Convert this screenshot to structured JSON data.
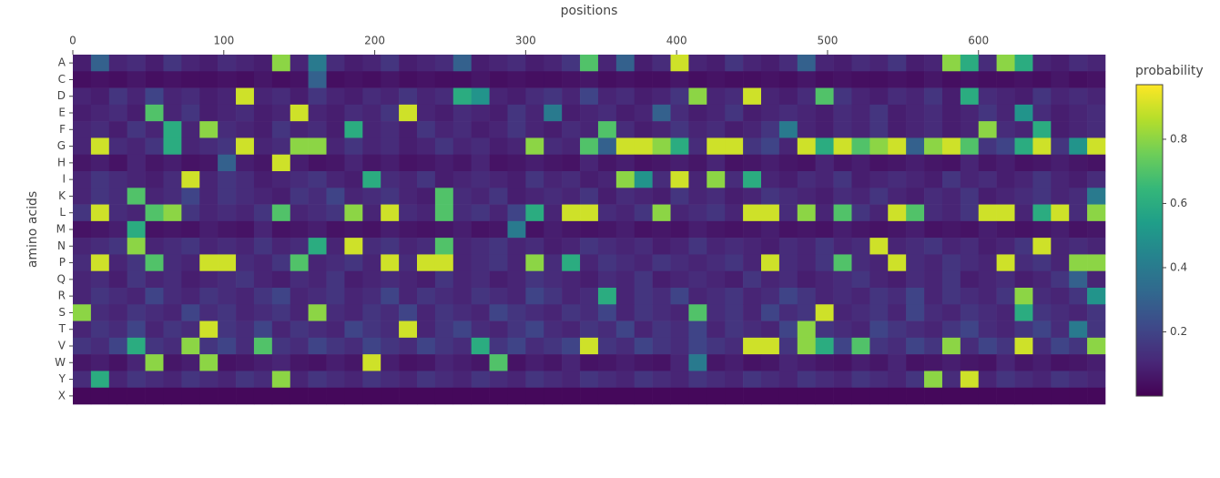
{
  "chart_data": {
    "type": "heatmap",
    "x_label": "positions",
    "y_label": "amino acids",
    "colorbar_title": "probability",
    "colorscale": "Viridis",
    "x_axis_side": "top",
    "x": [
      6,
      18,
      30,
      42,
      54,
      66,
      78,
      90,
      102,
      114,
      126,
      138,
      150,
      162,
      174,
      186,
      198,
      210,
      222,
      234,
      246,
      258,
      270,
      282,
      294,
      306,
      318,
      330,
      342,
      354,
      366,
      378,
      390,
      402,
      414,
      426,
      438,
      450,
      462,
      474,
      486,
      498,
      510,
      522,
      534,
      546,
      558,
      570,
      582,
      594,
      606,
      618,
      630,
      642,
      654,
      666,
      678
    ],
    "y": [
      "A",
      "C",
      "D",
      "E",
      "F",
      "G",
      "H",
      "I",
      "K",
      "L",
      "M",
      "N",
      "P",
      "Q",
      "R",
      "S",
      "T",
      "V",
      "W",
      "Y",
      "X"
    ],
    "xlim": [
      0,
      684
    ],
    "xticks": [
      0,
      100,
      200,
      300,
      400,
      500,
      600
    ],
    "zlim": [
      0,
      0.97
    ],
    "zticks": [
      0.2,
      0.4,
      0.6,
      0.8
    ],
    "z": [
      [
        0.08,
        0.3,
        0.1,
        0.12,
        0.08,
        0.15,
        0.1,
        0.08,
        0.12,
        0.1,
        0.08,
        0.8,
        0.1,
        0.4,
        0.12,
        0.08,
        0.1,
        0.15,
        0.08,
        0.1,
        0.12,
        0.3,
        0.08,
        0.1,
        0.12,
        0.08,
        0.1,
        0.15,
        0.7,
        0.1,
        0.3,
        0.08,
        0.12,
        0.9,
        0.1,
        0.08,
        0.15,
        0.1,
        0.08,
        0.12,
        0.3,
        0.1,
        0.08,
        0.12,
        0.1,
        0.15,
        0.08,
        0.1,
        0.8,
        0.6,
        0.12,
        0.8,
        0.6,
        0.1,
        0.08,
        0.12,
        0.1
      ],
      [
        0.04,
        0.05,
        0.04,
        0.06,
        0.04,
        0.05,
        0.04,
        0.04,
        0.05,
        0.04,
        0.06,
        0.04,
        0.05,
        0.3,
        0.04,
        0.05,
        0.04,
        0.06,
        0.04,
        0.05,
        0.04,
        0.04,
        0.06,
        0.04,
        0.05,
        0.04,
        0.04,
        0.05,
        0.06,
        0.04,
        0.05,
        0.04,
        0.04,
        0.06,
        0.04,
        0.05,
        0.04,
        0.04,
        0.05,
        0.04,
        0.06,
        0.04,
        0.05,
        0.04,
        0.04,
        0.05,
        0.04,
        0.06,
        0.04,
        0.05,
        0.04,
        0.04,
        0.05,
        0.04,
        0.06,
        0.04,
        0.05
      ],
      [
        0.1,
        0.08,
        0.15,
        0.1,
        0.2,
        0.1,
        0.12,
        0.08,
        0.1,
        0.9,
        0.1,
        0.12,
        0.08,
        0.15,
        0.1,
        0.08,
        0.12,
        0.1,
        0.15,
        0.1,
        0.12,
        0.6,
        0.5,
        0.1,
        0.08,
        0.12,
        0.15,
        0.1,
        0.2,
        0.1,
        0.12,
        0.08,
        0.1,
        0.15,
        0.8,
        0.1,
        0.12,
        0.9,
        0.1,
        0.08,
        0.12,
        0.7,
        0.15,
        0.1,
        0.08,
        0.12,
        0.1,
        0.15,
        0.08,
        0.6,
        0.12,
        0.1,
        0.08,
        0.15,
        0.1,
        0.12,
        0.1
      ],
      [
        0.08,
        0.1,
        0.12,
        0.08,
        0.7,
        0.1,
        0.15,
        0.08,
        0.1,
        0.12,
        0.08,
        0.1,
        0.9,
        0.1,
        0.08,
        0.12,
        0.1,
        0.15,
        0.9,
        0.1,
        0.08,
        0.12,
        0.1,
        0.08,
        0.15,
        0.1,
        0.4,
        0.08,
        0.1,
        0.12,
        0.08,
        0.1,
        0.3,
        0.12,
        0.08,
        0.1,
        0.15,
        0.08,
        0.1,
        0.12,
        0.1,
        0.08,
        0.12,
        0.1,
        0.15,
        0.08,
        0.1,
        0.12,
        0.08,
        0.1,
        0.15,
        0.1,
        0.5,
        0.12,
        0.08,
        0.1,
        0.12
      ],
      [
        0.1,
        0.12,
        0.08,
        0.15,
        0.1,
        0.6,
        0.1,
        0.8,
        0.12,
        0.1,
        0.08,
        0.15,
        0.1,
        0.12,
        0.08,
        0.6,
        0.1,
        0.12,
        0.08,
        0.15,
        0.1,
        0.12,
        0.08,
        0.1,
        0.15,
        0.1,
        0.08,
        0.12,
        0.1,
        0.7,
        0.12,
        0.08,
        0.1,
        0.15,
        0.1,
        0.12,
        0.08,
        0.1,
        0.15,
        0.4,
        0.1,
        0.08,
        0.12,
        0.1,
        0.15,
        0.08,
        0.1,
        0.12,
        0.08,
        0.1,
        0.8,
        0.12,
        0.1,
        0.6,
        0.08,
        0.1,
        0.12
      ],
      [
        0.1,
        0.9,
        0.12,
        0.1,
        0.15,
        0.6,
        0.1,
        0.12,
        0.15,
        0.9,
        0.1,
        0.12,
        0.8,
        0.8,
        0.1,
        0.15,
        0.1,
        0.12,
        0.08,
        0.1,
        0.15,
        0.1,
        0.12,
        0.08,
        0.1,
        0.8,
        0.12,
        0.1,
        0.7,
        0.3,
        0.9,
        0.9,
        0.8,
        0.6,
        0.12,
        0.9,
        0.9,
        0.15,
        0.2,
        0.1,
        0.9,
        0.6,
        0.9,
        0.7,
        0.8,
        0.9,
        0.3,
        0.8,
        0.9,
        0.7,
        0.15,
        0.2,
        0.6,
        0.9,
        0.15,
        0.5,
        0.9
      ],
      [
        0.06,
        0.08,
        0.05,
        0.1,
        0.06,
        0.08,
        0.05,
        0.06,
        0.3,
        0.08,
        0.06,
        0.9,
        0.08,
        0.05,
        0.06,
        0.1,
        0.06,
        0.08,
        0.05,
        0.06,
        0.08,
        0.06,
        0.1,
        0.05,
        0.06,
        0.08,
        0.06,
        0.05,
        0.1,
        0.06,
        0.08,
        0.05,
        0.06,
        0.08,
        0.06,
        0.1,
        0.05,
        0.06,
        0.08,
        0.06,
        0.05,
        0.1,
        0.06,
        0.08,
        0.05,
        0.06,
        0.08,
        0.06,
        0.05,
        0.1,
        0.06,
        0.08,
        0.05,
        0.06,
        0.08,
        0.06,
        0.05
      ],
      [
        0.1,
        0.15,
        0.12,
        0.1,
        0.08,
        0.12,
        0.9,
        0.1,
        0.15,
        0.12,
        0.08,
        0.1,
        0.12,
        0.15,
        0.1,
        0.08,
        0.6,
        0.12,
        0.1,
        0.15,
        0.08,
        0.1,
        0.12,
        0.1,
        0.08,
        0.15,
        0.1,
        0.12,
        0.08,
        0.1,
        0.8,
        0.5,
        0.12,
        0.9,
        0.1,
        0.8,
        0.12,
        0.6,
        0.1,
        0.08,
        0.12,
        0.1,
        0.15,
        0.08,
        0.1,
        0.12,
        0.1,
        0.08,
        0.15,
        0.1,
        0.12,
        0.08,
        0.1,
        0.15,
        0.1,
        0.08,
        0.12
      ],
      [
        0.1,
        0.15,
        0.12,
        0.7,
        0.1,
        0.12,
        0.2,
        0.1,
        0.15,
        0.12,
        0.1,
        0.08,
        0.15,
        0.12,
        0.2,
        0.1,
        0.12,
        0.15,
        0.1,
        0.08,
        0.7,
        0.12,
        0.1,
        0.15,
        0.08,
        0.1,
        0.12,
        0.1,
        0.15,
        0.08,
        0.12,
        0.1,
        0.08,
        0.15,
        0.1,
        0.12,
        0.08,
        0.1,
        0.15,
        0.12,
        0.1,
        0.08,
        0.12,
        0.1,
        0.15,
        0.1,
        0.08,
        0.12,
        0.1,
        0.15,
        0.08,
        0.1,
        0.12,
        0.15,
        0.1,
        0.12,
        0.4
      ],
      [
        0.15,
        0.9,
        0.12,
        0.1,
        0.7,
        0.8,
        0.15,
        0.1,
        0.12,
        0.1,
        0.15,
        0.7,
        0.1,
        0.12,
        0.15,
        0.8,
        0.1,
        0.9,
        0.12,
        0.1,
        0.7,
        0.12,
        0.15,
        0.1,
        0.2,
        0.6,
        0.1,
        0.9,
        0.9,
        0.12,
        0.1,
        0.15,
        0.8,
        0.1,
        0.12,
        0.15,
        0.1,
        0.9,
        0.9,
        0.12,
        0.8,
        0.1,
        0.7,
        0.15,
        0.1,
        0.9,
        0.7,
        0.12,
        0.1,
        0.15,
        0.9,
        0.9,
        0.1,
        0.6,
        0.9,
        0.12,
        0.8
      ],
      [
        0.05,
        0.06,
        0.08,
        0.6,
        0.05,
        0.06,
        0.05,
        0.08,
        0.06,
        0.05,
        0.1,
        0.05,
        0.06,
        0.08,
        0.05,
        0.06,
        0.05,
        0.08,
        0.06,
        0.05,
        0.06,
        0.08,
        0.05,
        0.06,
        0.4,
        0.05,
        0.08,
        0.06,
        0.05,
        0.06,
        0.08,
        0.05,
        0.06,
        0.05,
        0.08,
        0.06,
        0.05,
        0.06,
        0.08,
        0.05,
        0.06,
        0.05,
        0.08,
        0.06,
        0.05,
        0.06,
        0.08,
        0.05,
        0.06,
        0.05,
        0.08,
        0.06,
        0.05,
        0.06,
        0.08,
        0.05,
        0.06
      ],
      [
        0.1,
        0.12,
        0.15,
        0.8,
        0.1,
        0.12,
        0.15,
        0.1,
        0.12,
        0.1,
        0.15,
        0.1,
        0.12,
        0.6,
        0.1,
        0.9,
        0.12,
        0.15,
        0.1,
        0.12,
        0.7,
        0.1,
        0.12,
        0.15,
        0.1,
        0.12,
        0.08,
        0.1,
        0.15,
        0.12,
        0.1,
        0.12,
        0.08,
        0.1,
        0.15,
        0.1,
        0.12,
        0.1,
        0.08,
        0.12,
        0.1,
        0.15,
        0.1,
        0.12,
        0.9,
        0.1,
        0.12,
        0.15,
        0.1,
        0.12,
        0.08,
        0.1,
        0.15,
        0.9,
        0.1,
        0.12,
        0.1
      ],
      [
        0.12,
        0.9,
        0.1,
        0.15,
        0.7,
        0.12,
        0.1,
        0.9,
        0.9,
        0.12,
        0.1,
        0.15,
        0.7,
        0.1,
        0.12,
        0.15,
        0.1,
        0.9,
        0.12,
        0.9,
        0.9,
        0.1,
        0.12,
        0.15,
        0.1,
        0.8,
        0.12,
        0.6,
        0.1,
        0.15,
        0.12,
        0.1,
        0.15,
        0.12,
        0.1,
        0.12,
        0.15,
        0.1,
        0.9,
        0.12,
        0.1,
        0.15,
        0.7,
        0.12,
        0.1,
        0.9,
        0.12,
        0.1,
        0.15,
        0.12,
        0.1,
        0.9,
        0.12,
        0.15,
        0.1,
        0.8,
        0.8
      ],
      [
        0.1,
        0.12,
        0.08,
        0.15,
        0.1,
        0.12,
        0.08,
        0.1,
        0.12,
        0.15,
        0.1,
        0.08,
        0.12,
        0.1,
        0.15,
        0.08,
        0.1,
        0.12,
        0.1,
        0.08,
        0.15,
        0.1,
        0.12,
        0.08,
        0.1,
        0.15,
        0.12,
        0.1,
        0.08,
        0.12,
        0.1,
        0.15,
        0.08,
        0.1,
        0.12,
        0.1,
        0.08,
        0.15,
        0.1,
        0.12,
        0.08,
        0.1,
        0.12,
        0.15,
        0.1,
        0.08,
        0.12,
        0.1,
        0.15,
        0.08,
        0.1,
        0.12,
        0.08,
        0.1,
        0.15,
        0.3,
        0.1
      ],
      [
        0.1,
        0.15,
        0.12,
        0.1,
        0.2,
        0.12,
        0.1,
        0.15,
        0.12,
        0.1,
        0.15,
        0.2,
        0.1,
        0.12,
        0.15,
        0.1,
        0.12,
        0.2,
        0.1,
        0.15,
        0.12,
        0.1,
        0.15,
        0.12,
        0.1,
        0.2,
        0.15,
        0.1,
        0.12,
        0.6,
        0.1,
        0.15,
        0.12,
        0.2,
        0.1,
        0.12,
        0.15,
        0.1,
        0.12,
        0.2,
        0.15,
        0.1,
        0.12,
        0.1,
        0.15,
        0.12,
        0.2,
        0.1,
        0.15,
        0.12,
        0.1,
        0.15,
        0.8,
        0.12,
        0.1,
        0.15,
        0.5
      ],
      [
        0.8,
        0.12,
        0.1,
        0.15,
        0.12,
        0.1,
        0.2,
        0.12,
        0.15,
        0.1,
        0.12,
        0.15,
        0.1,
        0.8,
        0.12,
        0.1,
        0.15,
        0.12,
        0.2,
        0.1,
        0.15,
        0.12,
        0.1,
        0.2,
        0.15,
        0.12,
        0.1,
        0.15,
        0.12,
        0.2,
        0.1,
        0.15,
        0.12,
        0.1,
        0.7,
        0.12,
        0.15,
        0.1,
        0.2,
        0.12,
        0.15,
        0.9,
        0.1,
        0.12,
        0.15,
        0.1,
        0.2,
        0.12,
        0.1,
        0.15,
        0.12,
        0.1,
        0.6,
        0.15,
        0.12,
        0.1,
        0.15
      ],
      [
        0.1,
        0.15,
        0.12,
        0.2,
        0.1,
        0.15,
        0.12,
        0.9,
        0.15,
        0.12,
        0.2,
        0.1,
        0.15,
        0.12,
        0.1,
        0.2,
        0.15,
        0.12,
        0.9,
        0.1,
        0.15,
        0.2,
        0.12,
        0.1,
        0.15,
        0.2,
        0.12,
        0.1,
        0.15,
        0.12,
        0.2,
        0.1,
        0.15,
        0.12,
        0.2,
        0.1,
        0.15,
        0.12,
        0.1,
        0.2,
        0.8,
        0.15,
        0.12,
        0.1,
        0.2,
        0.15,
        0.12,
        0.1,
        0.15,
        0.2,
        0.12,
        0.1,
        0.15,
        0.2,
        0.12,
        0.4,
        0.15
      ],
      [
        0.15,
        0.12,
        0.2,
        0.6,
        0.15,
        0.12,
        0.8,
        0.15,
        0.2,
        0.12,
        0.7,
        0.15,
        0.12,
        0.2,
        0.15,
        0.12,
        0.2,
        0.15,
        0.12,
        0.2,
        0.15,
        0.12,
        0.6,
        0.15,
        0.2,
        0.12,
        0.15,
        0.2,
        0.9,
        0.15,
        0.12,
        0.2,
        0.15,
        0.12,
        0.2,
        0.15,
        0.12,
        0.9,
        0.9,
        0.15,
        0.8,
        0.6,
        0.2,
        0.7,
        0.15,
        0.12,
        0.2,
        0.15,
        0.8,
        0.12,
        0.2,
        0.15,
        0.9,
        0.12,
        0.2,
        0.15,
        0.8
      ],
      [
        0.06,
        0.08,
        0.05,
        0.1,
        0.8,
        0.06,
        0.08,
        0.8,
        0.05,
        0.06,
        0.08,
        0.1,
        0.06,
        0.05,
        0.08,
        0.06,
        0.9,
        0.08,
        0.05,
        0.06,
        0.1,
        0.08,
        0.06,
        0.7,
        0.05,
        0.08,
        0.06,
        0.1,
        0.05,
        0.06,
        0.08,
        0.06,
        0.05,
        0.1,
        0.4,
        0.06,
        0.08,
        0.05,
        0.06,
        0.1,
        0.08,
        0.06,
        0.05,
        0.08,
        0.06,
        0.1,
        0.05,
        0.06,
        0.08,
        0.06,
        0.05,
        0.1,
        0.06,
        0.08,
        0.05,
        0.06,
        0.08
      ],
      [
        0.12,
        0.6,
        0.1,
        0.15,
        0.12,
        0.1,
        0.15,
        0.12,
        0.1,
        0.15,
        0.12,
        0.8,
        0.1,
        0.15,
        0.12,
        0.1,
        0.15,
        0.12,
        0.1,
        0.15,
        0.12,
        0.1,
        0.15,
        0.12,
        0.1,
        0.15,
        0.12,
        0.1,
        0.15,
        0.12,
        0.1,
        0.15,
        0.12,
        0.1,
        0.15,
        0.12,
        0.1,
        0.15,
        0.12,
        0.1,
        0.15,
        0.12,
        0.1,
        0.15,
        0.12,
        0.1,
        0.15,
        0.8,
        0.12,
        0.9,
        0.1,
        0.15,
        0.12,
        0.1,
        0.15,
        0.12,
        0.1
      ],
      [
        0.02,
        0.02,
        0.02,
        0.02,
        0.02,
        0.02,
        0.02,
        0.02,
        0.02,
        0.02,
        0.02,
        0.02,
        0.02,
        0.02,
        0.02,
        0.02,
        0.02,
        0.02,
        0.02,
        0.02,
        0.02,
        0.02,
        0.02,
        0.02,
        0.02,
        0.02,
        0.02,
        0.02,
        0.02,
        0.02,
        0.02,
        0.02,
        0.02,
        0.02,
        0.02,
        0.02,
        0.02,
        0.02,
        0.02,
        0.02,
        0.02,
        0.02,
        0.02,
        0.02,
        0.02,
        0.02,
        0.02,
        0.02,
        0.02,
        0.02,
        0.02,
        0.02,
        0.02,
        0.02,
        0.02,
        0.02,
        0.02
      ]
    ]
  }
}
